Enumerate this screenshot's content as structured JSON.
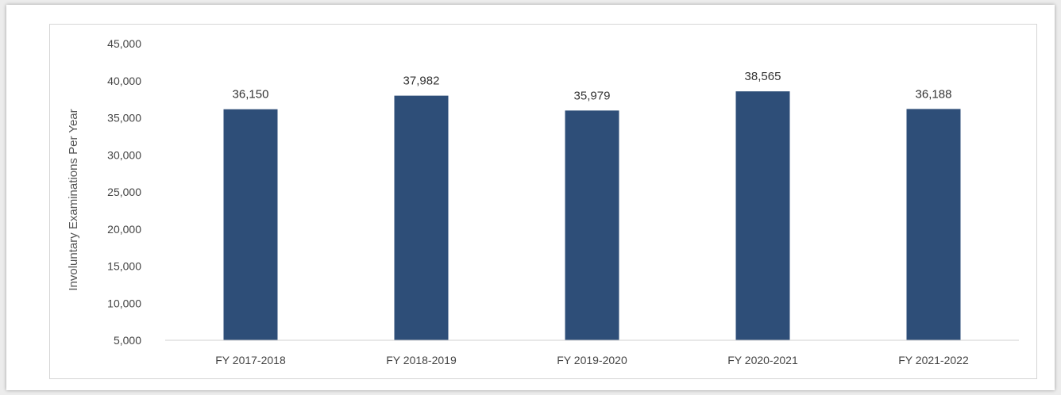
{
  "chart_data": {
    "type": "bar",
    "title": "",
    "xlabel": "",
    "ylabel": "Involuntary Examinations Per Year",
    "categories": [
      "FY 2017-2018",
      "FY 2018-2019",
      "FY 2019-2020",
      "FY 2020-2021",
      "FY 2021-2022"
    ],
    "values": [
      36150,
      37982,
      35979,
      38565,
      36188
    ],
    "value_labels": [
      "36,150",
      "37,982",
      "35,979",
      "38,565",
      "36,188"
    ],
    "ylim": [
      5000,
      45000
    ],
    "yticks": [
      5000,
      10000,
      15000,
      20000,
      25000,
      30000,
      35000,
      40000,
      45000
    ],
    "ytick_labels": [
      "5,000",
      "10,000",
      "15,000",
      "20,000",
      "25,000",
      "30,000",
      "35,000",
      "40,000",
      "45,000"
    ],
    "grid": false,
    "legend": "none",
    "bar_color": "#2e4e78"
  }
}
